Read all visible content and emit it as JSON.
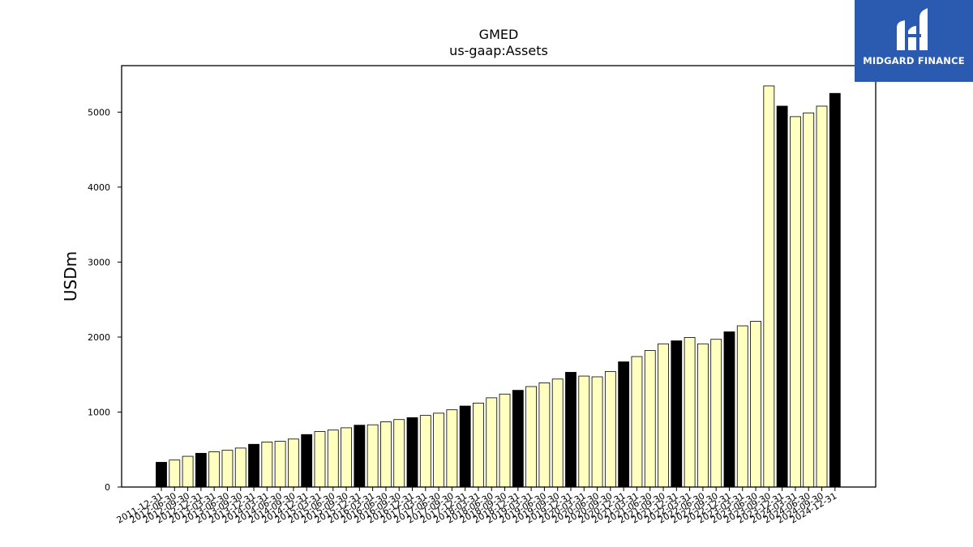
{
  "logo": {
    "text": "MIDGARD FINANCE",
    "icon": "midgard-logo-icon",
    "background": "#2a5bb0"
  },
  "chart_data": {
    "type": "bar",
    "title": "GMED",
    "subtitle": "us-gaap:Assets",
    "xlabel": "",
    "ylabel": "USDm",
    "ylim": [
      0,
      5620
    ],
    "yticks": [
      0,
      1000,
      2000,
      3000,
      4000,
      5000
    ],
    "grid": false,
    "colors": {
      "fiscal_year_end": "#000000",
      "quarter": "#ffffc0",
      "edge": "#000000"
    },
    "categories": [
      "2011-12-31",
      "2012-06-30",
      "2012-09-30",
      "2012-12-31",
      "2013-03-31",
      "2013-06-30",
      "2013-09-30",
      "2013-12-31",
      "2014-03-31",
      "2014-06-30",
      "2014-09-30",
      "2014-12-31",
      "2015-03-31",
      "2015-06-30",
      "2015-09-30",
      "2015-12-31",
      "2016-03-31",
      "2016-06-30",
      "2016-09-30",
      "2016-12-31",
      "2017-03-31",
      "2017-06-30",
      "2017-09-30",
      "2017-12-31",
      "2018-03-31",
      "2018-06-30",
      "2018-09-30",
      "2018-12-31",
      "2019-03-31",
      "2019-06-30",
      "2019-09-30",
      "2019-12-31",
      "2020-03-31",
      "2020-06-30",
      "2020-09-30",
      "2020-12-31",
      "2021-03-31",
      "2021-06-30",
      "2021-09-30",
      "2021-12-31",
      "2022-03-31",
      "2022-06-30",
      "2022-09-30",
      "2022-12-31",
      "2023-03-31",
      "2023-06-30",
      "2023-09-30",
      "2023-12-31",
      "2024-03-31",
      "2024-06-30",
      "2024-09-30",
      "2024-12-31"
    ],
    "values": [
      330,
      360,
      410,
      450,
      470,
      490,
      520,
      570,
      600,
      610,
      640,
      700,
      740,
      760,
      790,
      825,
      830,
      870,
      900,
      925,
      955,
      985,
      1030,
      1080,
      1120,
      1190,
      1240,
      1290,
      1340,
      1390,
      1440,
      1530,
      1480,
      1470,
      1540,
      1670,
      1740,
      1820,
      1910,
      1950,
      1995,
      1910,
      1970,
      2070,
      2150,
      2210,
      5350,
      5080,
      4940,
      4990,
      5080,
      5250
    ],
    "fiscal_year_end": [
      true,
      false,
      false,
      true,
      false,
      false,
      false,
      true,
      false,
      false,
      false,
      true,
      false,
      false,
      false,
      true,
      false,
      false,
      false,
      true,
      false,
      false,
      false,
      true,
      false,
      false,
      false,
      true,
      false,
      false,
      false,
      true,
      false,
      false,
      false,
      true,
      false,
      false,
      false,
      true,
      false,
      false,
      false,
      true,
      false,
      false,
      false,
      true,
      false,
      false,
      false,
      true
    ]
  }
}
